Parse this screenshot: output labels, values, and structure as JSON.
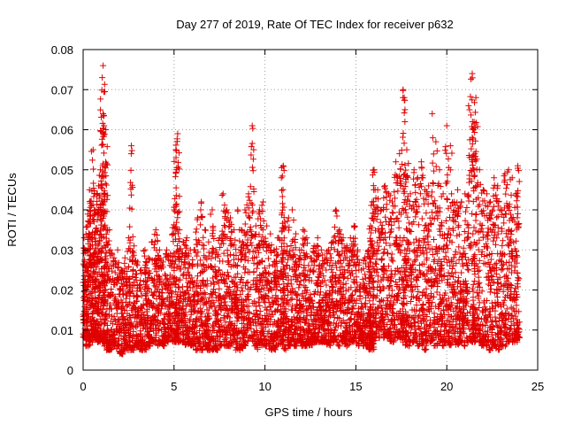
{
  "chart_data": {
    "type": "scatter",
    "title": "Day 277 of 2019, Rate Of TEC Index for receiver p632",
    "xlabel": "GPS time / hours",
    "ylabel": "ROTI / TECUs",
    "xlim": [
      0,
      25
    ],
    "ylim": [
      0,
      0.08
    ],
    "xticks": [
      0,
      5,
      10,
      15,
      20,
      25
    ],
    "xtick_labels": [
      "0",
      "5",
      "10",
      "15",
      "20",
      "25"
    ],
    "yticks": [
      0,
      0.01,
      0.02,
      0.03,
      0.04,
      0.05,
      0.06,
      0.07,
      0.08
    ],
    "ytick_labels": [
      "0",
      "0.01",
      "0.02",
      "0.03",
      "0.04",
      "0.05",
      "0.06",
      "0.07",
      "0.08"
    ],
    "grid": true,
    "marker": "plus",
    "color": "#e00000",
    "series": [
      {
        "name": "p632",
        "x": [
          0.05,
          0.15,
          0.25,
          0.35,
          0.45,
          0.55,
          0.65,
          0.75,
          0.85,
          0.95,
          1.05,
          1.1,
          1.15,
          1.25,
          1.35,
          1.5,
          1.7,
          1.9,
          2.1,
          2.3,
          2.5,
          2.65,
          2.8,
          3.0,
          3.2,
          3.4,
          3.6,
          3.8,
          4.0,
          4.2,
          4.4,
          4.6,
          4.8,
          5.0,
          5.1,
          5.2,
          5.3,
          5.5,
          5.7,
          5.9,
          6.1,
          6.3,
          6.5,
          6.7,
          6.9,
          7.1,
          7.3,
          7.5,
          7.7,
          7.9,
          8.1,
          8.3,
          8.5,
          8.7,
          8.9,
          9.1,
          9.3,
          9.5,
          9.7,
          9.9,
          10.1,
          10.3,
          10.5,
          10.7,
          10.9,
          11.0,
          11.1,
          11.3,
          11.5,
          11.7,
          11.9,
          12.1,
          12.3,
          12.5,
          12.7,
          12.9,
          13.1,
          13.3,
          13.5,
          13.7,
          13.9,
          14.1,
          14.3,
          14.5,
          14.7,
          14.9,
          15.1,
          15.3,
          15.5,
          15.7,
          15.8,
          15.9,
          16.0,
          16.2,
          16.4,
          16.6,
          16.8,
          17.0,
          17.2,
          17.4,
          17.6,
          17.7,
          17.8,
          18.0,
          18.2,
          18.4,
          18.6,
          18.8,
          19.0,
          19.2,
          19.4,
          19.6,
          19.8,
          20.0,
          20.2,
          20.4,
          20.6,
          20.8,
          21.0,
          21.2,
          21.4,
          21.5,
          21.6,
          21.8,
          22.0,
          22.2,
          22.4,
          22.6,
          22.8,
          23.0,
          23.2,
          23.4,
          23.6,
          23.8,
          23.9
        ],
        "y": [
          0.033,
          0.03,
          0.036,
          0.045,
          0.041,
          0.055,
          0.04,
          0.044,
          0.046,
          0.05,
          0.073,
          0.076,
          0.061,
          0.06,
          0.035,
          0.03,
          0.028,
          0.03,
          0.025,
          0.028,
          0.033,
          0.056,
          0.031,
          0.027,
          0.025,
          0.03,
          0.028,
          0.032,
          0.035,
          0.03,
          0.027,
          0.03,
          0.029,
          0.04,
          0.055,
          0.059,
          0.035,
          0.032,
          0.033,
          0.03,
          0.03,
          0.038,
          0.042,
          0.035,
          0.032,
          0.04,
          0.03,
          0.033,
          0.044,
          0.04,
          0.038,
          0.035,
          0.04,
          0.035,
          0.04,
          0.044,
          0.061,
          0.036,
          0.04,
          0.042,
          0.036,
          0.034,
          0.03,
          0.033,
          0.048,
          0.051,
          0.036,
          0.038,
          0.04,
          0.034,
          0.03,
          0.035,
          0.033,
          0.028,
          0.031,
          0.033,
          0.03,
          0.028,
          0.03,
          0.032,
          0.04,
          0.035,
          0.033,
          0.031,
          0.033,
          0.036,
          0.03,
          0.025,
          0.028,
          0.03,
          0.036,
          0.042,
          0.05,
          0.045,
          0.04,
          0.046,
          0.044,
          0.042,
          0.052,
          0.054,
          0.07,
          0.065,
          0.055,
          0.044,
          0.05,
          0.048,
          0.052,
          0.045,
          0.046,
          0.064,
          0.057,
          0.05,
          0.044,
          0.061,
          0.056,
          0.042,
          0.045,
          0.042,
          0.044,
          0.066,
          0.074,
          0.062,
          0.068,
          0.05,
          0.045,
          0.044,
          0.042,
          0.048,
          0.046,
          0.04,
          0.049,
          0.05,
          0.048,
          0.044,
          0.051
        ],
        "y_low": [
          0.008,
          0.008,
          0.006,
          0.006,
          0.007,
          0.008,
          0.008,
          0.008,
          0.007,
          0.008,
          0.007,
          0.007,
          0.007,
          0.006,
          0.005,
          0.005,
          0.006,
          0.005,
          0.004,
          0.005,
          0.005,
          0.005,
          0.005,
          0.006,
          0.005,
          0.005,
          0.006,
          0.007,
          0.007,
          0.006,
          0.006,
          0.007,
          0.008,
          0.007,
          0.007,
          0.008,
          0.007,
          0.007,
          0.006,
          0.006,
          0.006,
          0.005,
          0.005,
          0.006,
          0.005,
          0.005,
          0.005,
          0.006,
          0.006,
          0.006,
          0.006,
          0.007,
          0.005,
          0.005,
          0.006,
          0.007,
          0.007,
          0.005,
          0.006,
          0.006,
          0.006,
          0.005,
          0.005,
          0.006,
          0.006,
          0.007,
          0.005,
          0.006,
          0.007,
          0.006,
          0.007,
          0.006,
          0.006,
          0.006,
          0.007,
          0.007,
          0.007,
          0.007,
          0.006,
          0.007,
          0.007,
          0.006,
          0.007,
          0.006,
          0.007,
          0.007,
          0.006,
          0.007,
          0.006,
          0.006,
          0.005,
          0.005,
          0.006,
          0.008,
          0.01,
          0.008,
          0.007,
          0.007,
          0.008,
          0.008,
          0.007,
          0.007,
          0.006,
          0.006,
          0.007,
          0.006,
          0.006,
          0.005,
          0.007,
          0.007,
          0.006,
          0.006,
          0.006,
          0.007,
          0.006,
          0.007,
          0.006,
          0.007,
          0.006,
          0.007,
          0.007,
          0.007,
          0.007,
          0.007,
          0.006,
          0.006,
          0.005,
          0.006,
          0.005,
          0.006,
          0.006,
          0.007,
          0.007,
          0.007,
          0.008
        ]
      }
    ]
  }
}
